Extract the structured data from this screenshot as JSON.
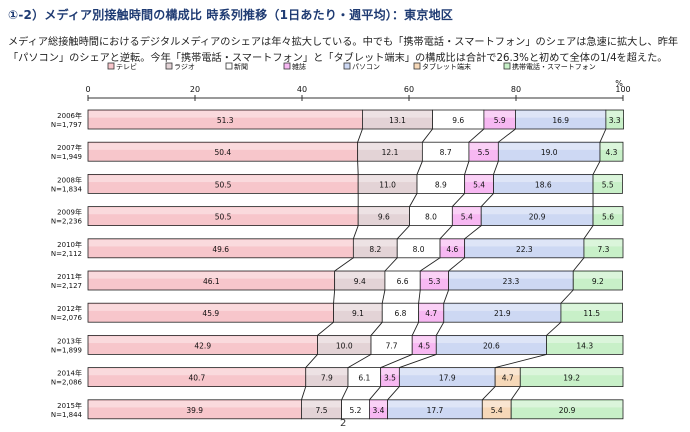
{
  "page": {
    "title": "①-2）メディア別接触時間の構成比 時系列推移（1日あたり・週平均）：東京地区",
    "description_line1": "メディア総接触時間におけるデジタルメディアのシェアは年々拡大している。中でも「携帯電話・スマートフォン」のシェアは急速に拡大し、昨年",
    "description_line2": "「パソコン」のシェアと逆転。今年「携帯電話・スマートフォン」と「タブレット端末」の構成比は合計で26.3%と初めて全体の1/4を超えた。",
    "page_number": "2"
  },
  "chart_data": {
    "type": "stacked-bar-horizontal",
    "xlim": [
      0,
      100
    ],
    "x_ticks": [
      "0",
      "20",
      "40",
      "60",
      "80",
      "100"
    ],
    "x_unit": "%",
    "legend_position": "top",
    "series": [
      {
        "name": "テレビ",
        "color": "#f7c6cb"
      },
      {
        "name": "ラジオ",
        "color": "#e3d3d6"
      },
      {
        "name": "新聞",
        "color": "#ffffff"
      },
      {
        "name": "雑誌",
        "color": "#f7b8f2"
      },
      {
        "name": "パソコン",
        "color": "#cdd8f3"
      },
      {
        "name": "タブレット端末",
        "color": "#f6d8b8"
      },
      {
        "name": "携帯電話・スマートフォン",
        "color": "#c8f0c8"
      }
    ],
    "rows": [
      {
        "year": "2006年",
        "n": "N=1,797",
        "values": [
          51.3,
          13.1,
          9.6,
          5.9,
          16.9,
          null,
          3.3
        ]
      },
      {
        "year": "2007年",
        "n": "N=1,949",
        "values": [
          50.4,
          12.1,
          8.7,
          5.5,
          19.0,
          null,
          4.3
        ]
      },
      {
        "year": "2008年",
        "n": "N=1,834",
        "values": [
          50.5,
          11.0,
          8.9,
          5.4,
          18.6,
          null,
          5.5
        ]
      },
      {
        "year": "2009年",
        "n": "N=2,236",
        "values": [
          50.5,
          9.6,
          8.0,
          5.4,
          20.9,
          null,
          5.6
        ]
      },
      {
        "year": "2010年",
        "n": "N=2,112",
        "values": [
          49.6,
          8.2,
          8.0,
          4.6,
          22.3,
          null,
          7.3
        ]
      },
      {
        "year": "2011年",
        "n": "N=2,127",
        "values": [
          46.1,
          9.4,
          6.6,
          5.3,
          23.3,
          null,
          9.2
        ]
      },
      {
        "year": "2012年",
        "n": "N=2,076",
        "values": [
          45.9,
          9.1,
          6.8,
          4.7,
          21.9,
          null,
          11.5
        ]
      },
      {
        "year": "2013年",
        "n": "N=1,899",
        "values": [
          42.9,
          10.0,
          7.7,
          4.5,
          20.6,
          null,
          14.3
        ]
      },
      {
        "year": "2014年",
        "n": "N=2,086",
        "values": [
          40.7,
          7.9,
          6.1,
          3.5,
          17.9,
          4.7,
          19.2
        ]
      },
      {
        "year": "2015年",
        "n": "N=1,844",
        "values": [
          39.9,
          7.5,
          5.2,
          3.4,
          17.7,
          5.4,
          20.9
        ]
      }
    ]
  }
}
